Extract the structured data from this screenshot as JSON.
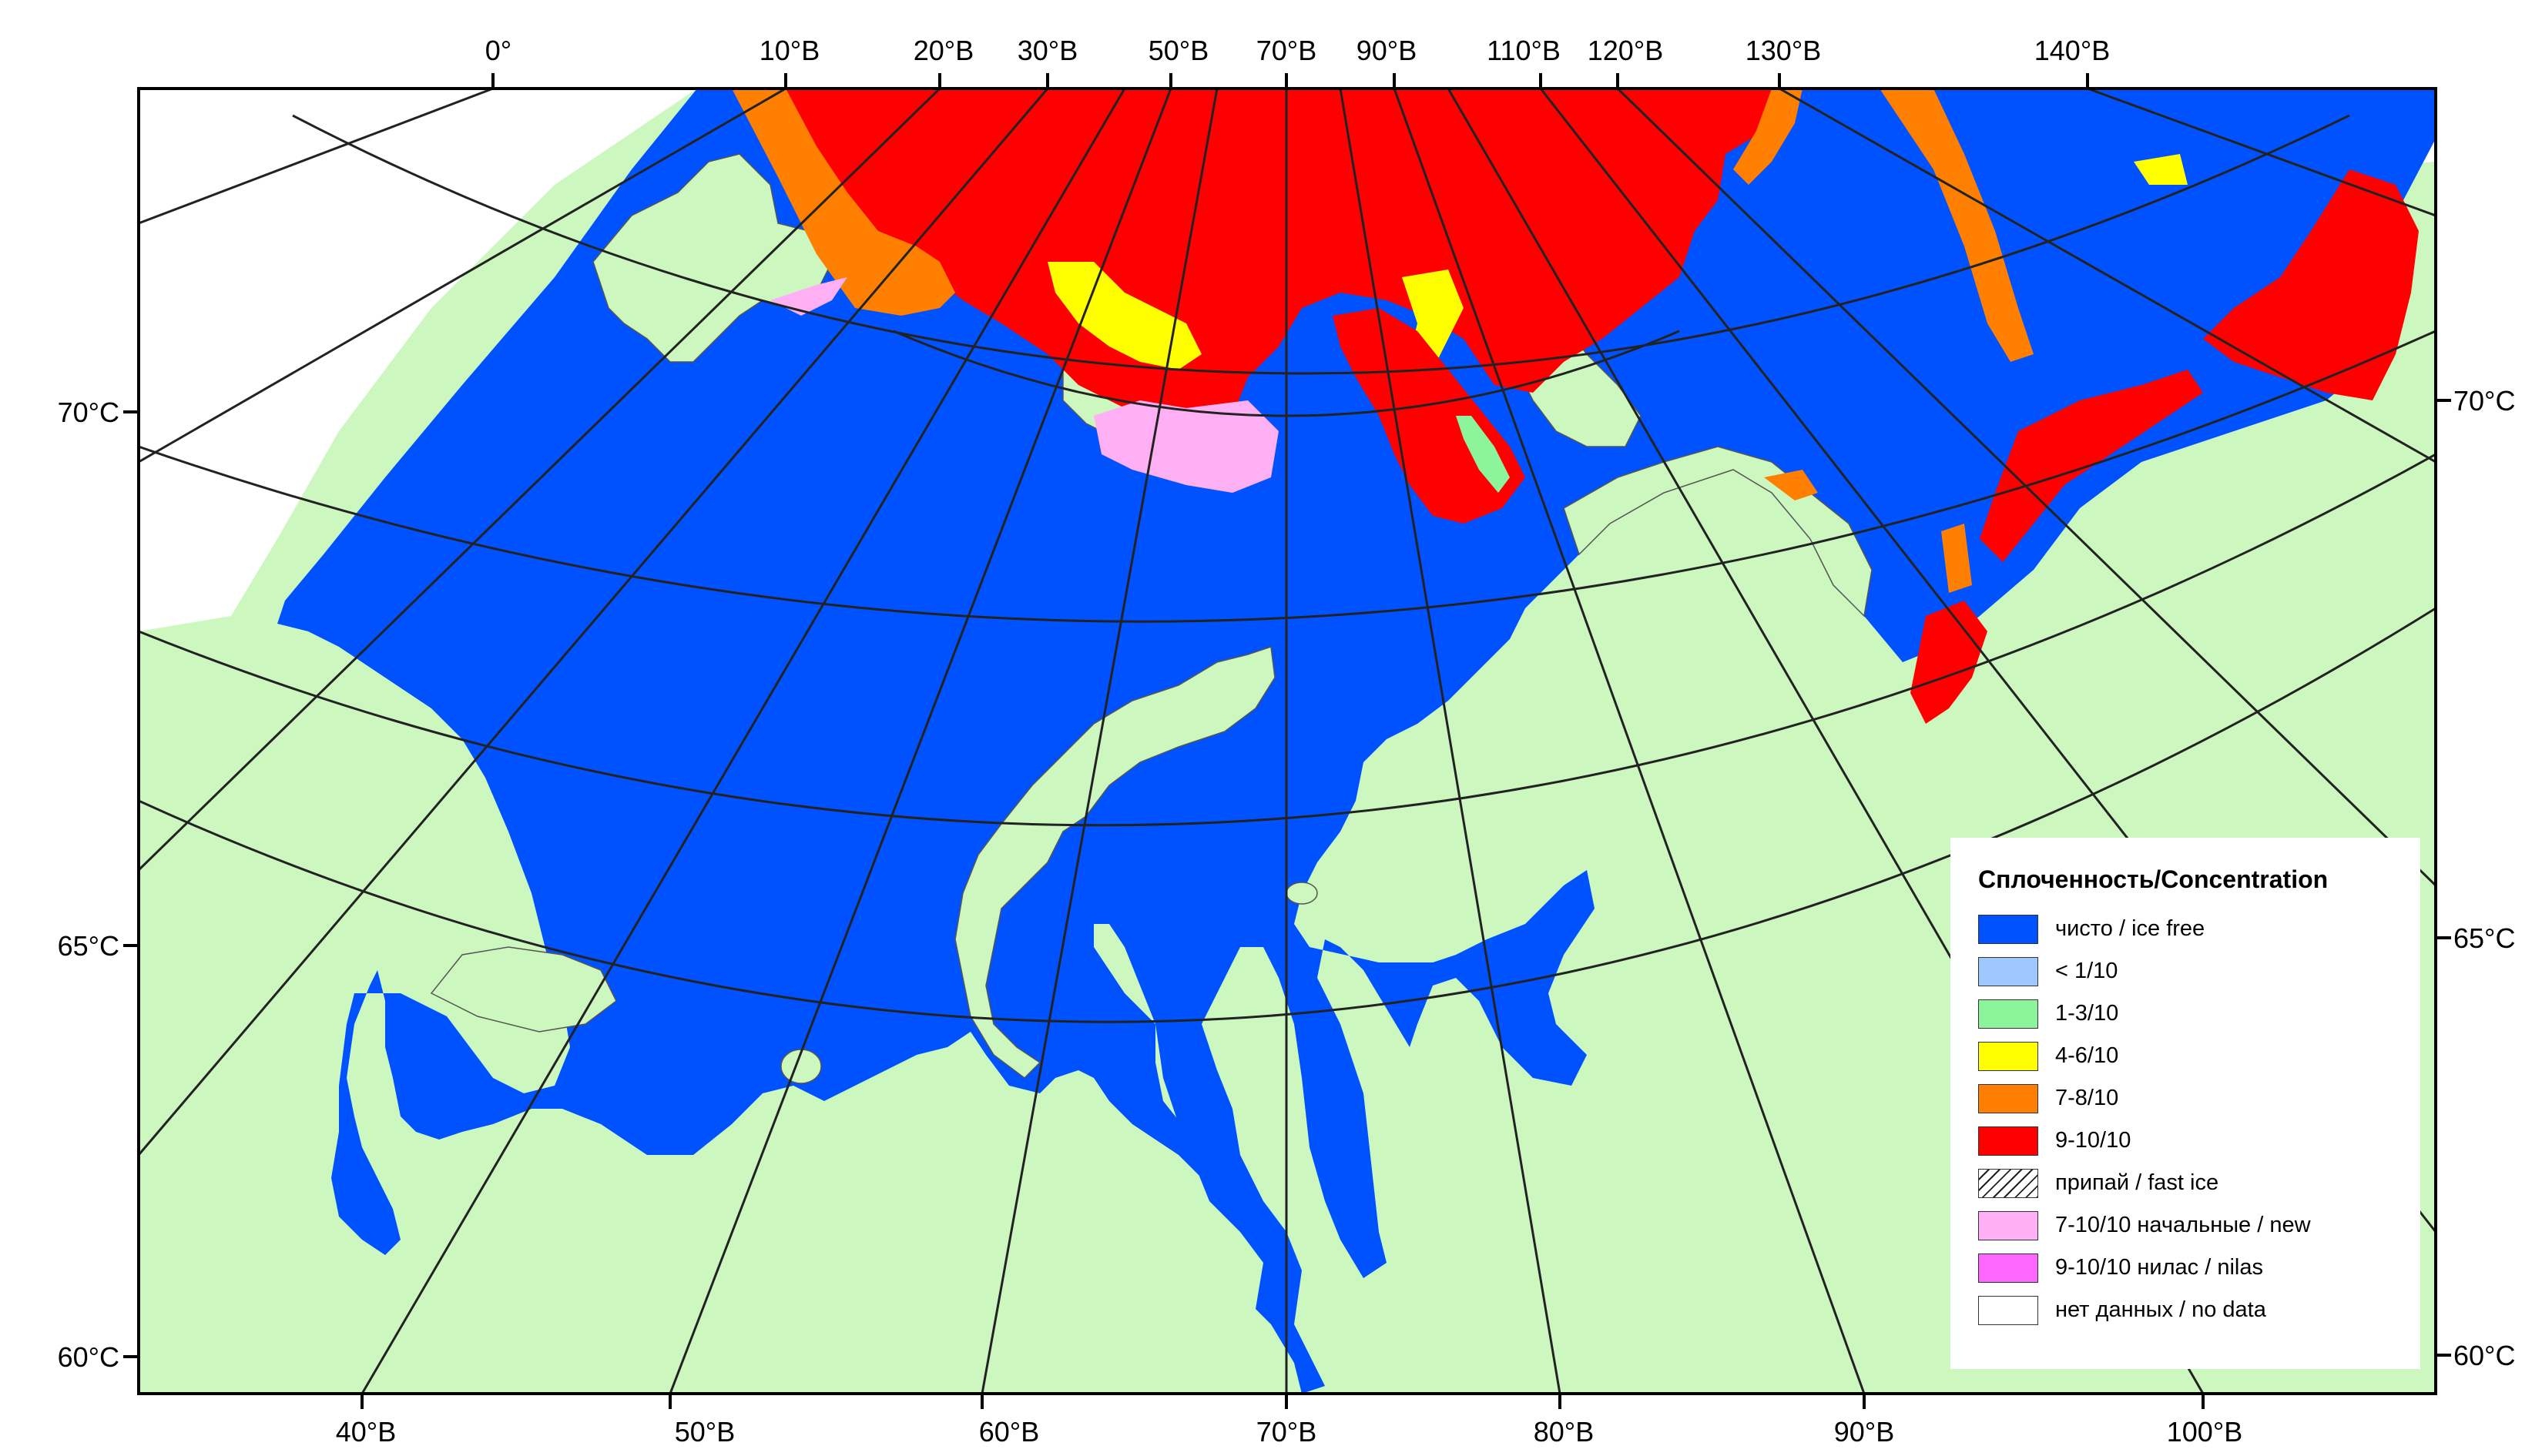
{
  "colors": {
    "land": "#ccf7bf",
    "sea": "#0052ff",
    "ice_7_10_new": "#ffb0f5",
    "no_data": "#ffffff",
    "frame": "#000000"
  },
  "top_lon_labels": [
    "0°",
    "10°В",
    "20°В",
    "30°В",
    "50°В",
    "70°В",
    "90°В",
    "110°В",
    "120°В",
    "130°В",
    "140°В"
  ],
  "bottom_lon_labels": [
    "40°В",
    "50°В",
    "60°В",
    "70°В",
    "80°В",
    "90°В",
    "100°В"
  ],
  "left_lat_labels": [
    "70°С",
    "65°С",
    "60°С"
  ],
  "right_lat_labels": [
    "70°С",
    "65°С",
    "60°С"
  ],
  "legend": {
    "title": "Сплоченность/Concentration",
    "items": [
      {
        "label": "чисто / ice free",
        "color": "#0052ff",
        "icon": "solid-swatch"
      },
      {
        "label": "< 1/10",
        "color": "#9ec8ff",
        "icon": "solid-swatch"
      },
      {
        "label": "1-3/10",
        "color": "#8cf59c",
        "icon": "solid-swatch"
      },
      {
        "label": "4-6/10",
        "color": "#ffff00",
        "icon": "solid-swatch"
      },
      {
        "label": "7-8/10",
        "color": "#ff7f00",
        "icon": "solid-swatch"
      },
      {
        "label": "9-10/10",
        "color": "#ff0000",
        "icon": "solid-swatch"
      },
      {
        "label": "припай / fast ice",
        "color": "#ffffff",
        "icon": "hatch-swatch"
      },
      {
        "label": "7-10/10 начальные / new",
        "color": "#ffb0f5",
        "icon": "solid-swatch"
      },
      {
        "label": "9-10/10 нилас / nilas",
        "color": "#ff66ff",
        "icon": "solid-swatch"
      },
      {
        "label": "нет данных / no data",
        "color": "#ffffff",
        "icon": "solid-swatch"
      }
    ]
  }
}
